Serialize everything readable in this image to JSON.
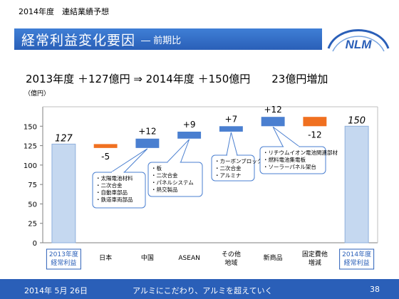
{
  "header": {
    "top_label": "2014年度　連結業績予想",
    "title": "経常利益変化要因",
    "subtitle": "― 前期比"
  },
  "logo": {
    "text": "NLM"
  },
  "headline": "2013年度 ＋127億円 ⇒ 2014年度 ＋150億円　　23億円増加",
  "unit_label": "（億円）",
  "chart_data": {
    "type": "bar",
    "subtype": "waterfall",
    "title": "",
    "xlabel": "",
    "ylabel": "（億円）",
    "ylim": [
      0,
      175
    ],
    "yticks": [
      0,
      25,
      50,
      75,
      100,
      125,
      150
    ],
    "grid": false,
    "categories": [
      "2013年度\n経常利益",
      "日本",
      "中国",
      "ASEAN",
      "その他\n地域",
      "新商品",
      "固定費他\n増減",
      "2014年度\n経常利益"
    ],
    "boxed_categories": [
      0,
      7
    ],
    "values": [
      127,
      -5,
      12,
      9,
      7,
      12,
      -12,
      150
    ],
    "value_labels": [
      "127",
      "-5",
      "+12",
      "+9",
      "+7",
      "+12",
      "-12",
      "150"
    ],
    "kinds": [
      "total",
      "decrease",
      "increase",
      "increase",
      "increase",
      "increase",
      "decrease",
      "total"
    ],
    "colors": {
      "total": "#c5d8f0",
      "total_edge": "#8fb0dc",
      "increase": "#4a7fd0",
      "decrease": "#f07020",
      "axis": "#7f7f7f",
      "callout_edge": "#4a7fd0"
    },
    "annotations": [
      {
        "bar": 2,
        "lines": [
          "・太陽電池材料",
          "・二次合金",
          "・自動車部品",
          "・鉄道車両部品"
        ]
      },
      {
        "bar": 3,
        "lines": [
          "・板",
          "・二次合金",
          "・パネルシステム",
          "・熱交製品"
        ]
      },
      {
        "bar": 4,
        "lines": [
          "・カーボンブロック",
          "・二次合金",
          "・アルミナ"
        ]
      },
      {
        "bar": 5,
        "lines": [
          "・リチウムイオン電池関連部材",
          "・燃料電池集電板",
          "・ソーラーパネル架台"
        ]
      }
    ]
  },
  "footer": {
    "date": "2014年 5月 26日",
    "slogan": "アルミにこだわり、アルミを超えていく",
    "page": "38"
  }
}
